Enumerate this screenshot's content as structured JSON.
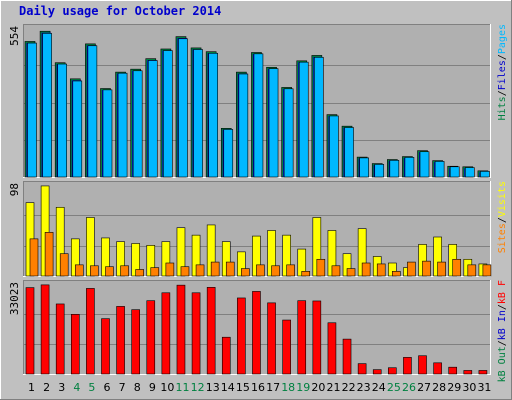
{
  "title": "Daily usage for October 2014",
  "colors": {
    "bg": "#c0c0c0",
    "plot": "#b0b0b0",
    "grid": "#808080",
    "hits": "#008040",
    "files": "#0000cc",
    "pages": "#00b8ff",
    "visits": "#ffff00",
    "sites": "#ff8000",
    "kbin": "#0000cc",
    "kbout": "#008040",
    "kbf": "#ff0000",
    "weekend": "#008040",
    "weekday": "#000000"
  },
  "chart_data": [
    {
      "type": "bar",
      "panel": "top",
      "ymax": 554,
      "ymax_label": "554",
      "x": [
        1,
        2,
        3,
        4,
        5,
        6,
        7,
        8,
        9,
        10,
        11,
        12,
        13,
        14,
        15,
        16,
        17,
        18,
        19,
        20,
        21,
        22,
        23,
        24,
        25,
        26,
        27,
        28,
        29,
        30,
        31
      ],
      "series": [
        {
          "name": "Hits",
          "values": [
            504,
            542,
            425,
            365,
            495,
            329,
            390,
            401,
            440,
            476,
            522,
            480,
            466,
            181,
            390,
            463,
            408,
            333,
            432,
            452,
            232,
            189,
            74,
            50,
            65,
            76,
            98,
            61,
            40,
            38,
            23
          ]
        },
        {
          "name": "Files",
          "values": [
            504,
            542,
            425,
            365,
            495,
            329,
            390,
            401,
            440,
            476,
            522,
            480,
            466,
            181,
            390,
            463,
            408,
            333,
            432,
            452,
            232,
            189,
            74,
            50,
            65,
            76,
            98,
            61,
            40,
            38,
            23
          ]
        },
        {
          "name": "Pages",
          "values": [
            498,
            534,
            420,
            357,
            488,
            324,
            386,
            395,
            433,
            470,
            514,
            474,
            460,
            177,
            383,
            458,
            403,
            328,
            427,
            445,
            227,
            184,
            71,
            47,
            62,
            73,
            94,
            58,
            38,
            35,
            21
          ]
        }
      ],
      "legend": [
        "Pages",
        "/",
        "Files",
        "/",
        "Hits"
      ]
    },
    {
      "type": "bar",
      "panel": "middle",
      "ymax": 98,
      "ymax_label": "98",
      "x": [
        1,
        2,
        3,
        4,
        5,
        6,
        7,
        8,
        9,
        10,
        11,
        12,
        13,
        14,
        15,
        16,
        17,
        18,
        19,
        20,
        21,
        22,
        23,
        24,
        25,
        26,
        27,
        28,
        29,
        30,
        31
      ],
      "series": [
        {
          "name": "Visits",
          "values": [
            79,
            97,
            74,
            40,
            63,
            41,
            37,
            35,
            33,
            37,
            52,
            44,
            55,
            37,
            26,
            43,
            49,
            44,
            29,
            63,
            49,
            24,
            51,
            21,
            14,
            9,
            34,
            42,
            34,
            18,
            13
          ]
        },
        {
          "name": "Sites",
          "values": [
            40,
            47,
            24,
            12,
            11,
            10,
            11,
            7,
            9,
            14,
            10,
            12,
            15,
            15,
            8,
            12,
            11,
            12,
            5,
            18,
            11,
            8,
            14,
            13,
            5,
            15,
            16,
            15,
            18,
            12,
            12
          ]
        }
      ],
      "legend": [
        "Visits",
        "/",
        "Sites"
      ]
    },
    {
      "type": "bar",
      "panel": "bottom",
      "ymax": 33023,
      "ymax_label": "33023",
      "x": [
        1,
        2,
        3,
        4,
        5,
        6,
        7,
        8,
        9,
        10,
        11,
        12,
        13,
        14,
        15,
        16,
        17,
        18,
        19,
        20,
        21,
        22,
        23,
        24,
        25,
        26,
        27,
        28,
        29,
        30,
        31
      ],
      "series": [
        {
          "name": "kB F",
          "values": [
            31700,
            32700,
            25700,
            21900,
            31400,
            20300,
            24800,
            23600,
            26900,
            29800,
            32600,
            29800,
            31800,
            13500,
            27900,
            30300,
            26100,
            19800,
            26900,
            26800,
            18800,
            12800,
            3800,
            1600,
            2300,
            6100,
            6700,
            4100,
            2500,
            1300,
            1300
          ]
        }
      ],
      "legend": [
        "kB F",
        "/",
        "kB In",
        "/",
        "kB Out"
      ]
    }
  ],
  "day_labels": [
    "1",
    "2",
    "3",
    "4",
    "5",
    "6",
    "7",
    "8",
    "9",
    "10",
    "11",
    "12",
    "13",
    "14",
    "15",
    "16",
    "17",
    "18",
    "19",
    "20",
    "21",
    "22",
    "23",
    "24",
    "25",
    "26",
    "27",
    "28",
    "29",
    "30",
    "31"
  ],
  "weekend_days": [
    4,
    5,
    11,
    12,
    18,
    19,
    25,
    26
  ]
}
